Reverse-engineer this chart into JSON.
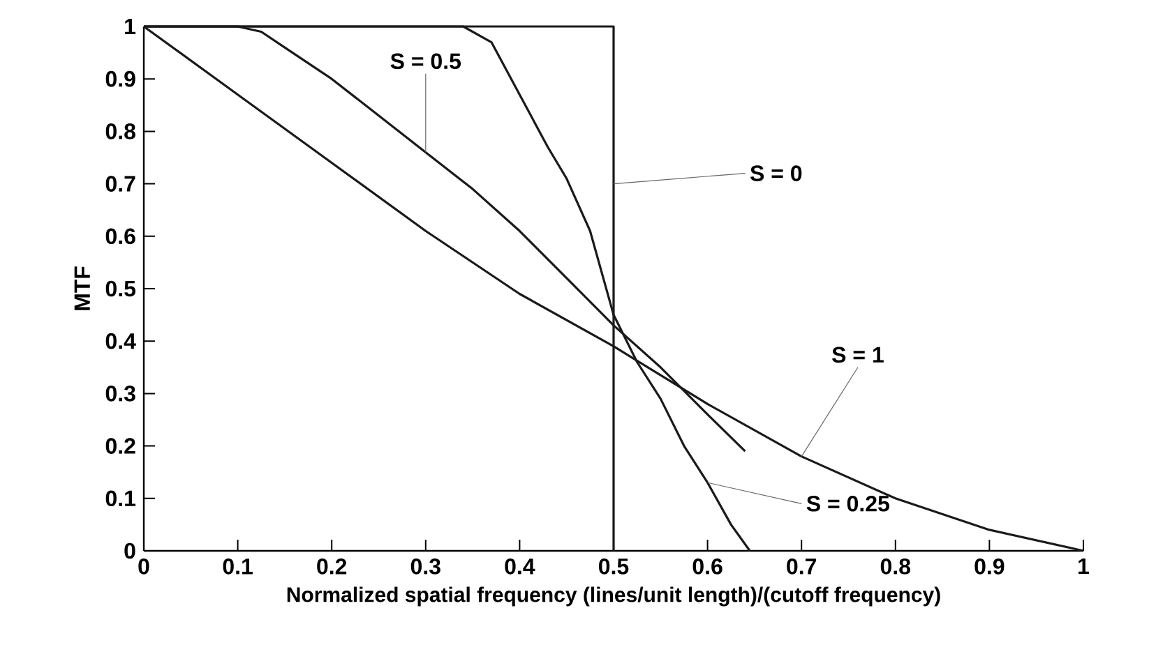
{
  "chart_data": {
    "type": "line",
    "xlabel": "Normalized spatial frequency (lines/unit length)/(cutoff frequency)",
    "ylabel": "MTF",
    "xlim": [
      0,
      1
    ],
    "ylim": [
      0,
      1
    ],
    "xticks": [
      0,
      0.1,
      0.2,
      0.3,
      0.4,
      0.5,
      0.6,
      0.7,
      0.8,
      0.9,
      1
    ],
    "yticks": [
      0,
      0.1,
      0.2,
      0.3,
      0.4,
      0.5,
      0.6,
      0.7,
      0.8,
      0.9,
      1
    ],
    "grid": false,
    "marker": "none",
    "line_style": "solid",
    "series": [
      {
        "color": "#1a1a1a",
        "x": [
          0,
          0.5,
          0.5
        ],
        "values": [
          1,
          1,
          0
        ]
      },
      {
        "color": "#1a1a1a",
        "x": [
          0,
          0.34,
          0.37,
          0.4,
          0.43,
          0.45,
          0.475,
          0.5,
          0.525,
          0.55,
          0.575,
          0.6,
          0.625,
          0.645
        ],
        "values": [
          1,
          1,
          0.97,
          0.87,
          0.77,
          0.71,
          0.61,
          0.45,
          0.36,
          0.29,
          0.2,
          0.13,
          0.05,
          0
        ]
      },
      {
        "color": "#1a1a1a",
        "x": [
          0,
          0.1,
          0.125,
          0.15,
          0.2,
          0.25,
          0.3,
          0.35,
          0.4,
          0.45,
          0.5,
          0.55,
          0.6,
          0.64
        ],
        "values": [
          1,
          1,
          0.99,
          0.96,
          0.9,
          0.83,
          0.76,
          0.69,
          0.61,
          0.52,
          0.43,
          0.35,
          0.26,
          0.19
        ]
      },
      {
        "color": "#1a1a1a",
        "x": [
          0,
          0.1,
          0.2,
          0.3,
          0.4,
          0.5,
          0.6,
          0.7,
          0.8,
          0.9,
          1
        ],
        "values": [
          1,
          0.87,
          0.74,
          0.61,
          0.49,
          0.39,
          0.28,
          0.18,
          0.1,
          0.04,
          0
        ]
      }
    ],
    "annotations": [
      {
        "text": "S = 0.5",
        "x": 0.3,
        "y": 0.76
      },
      {
        "text": "S = 0",
        "x": 0.5,
        "y": 0.7
      },
      {
        "text": "S = 1",
        "x": 0.7,
        "y": 0.18
      },
      {
        "text": "S = 0.25",
        "x": 0.6,
        "y": 0.13
      }
    ]
  }
}
